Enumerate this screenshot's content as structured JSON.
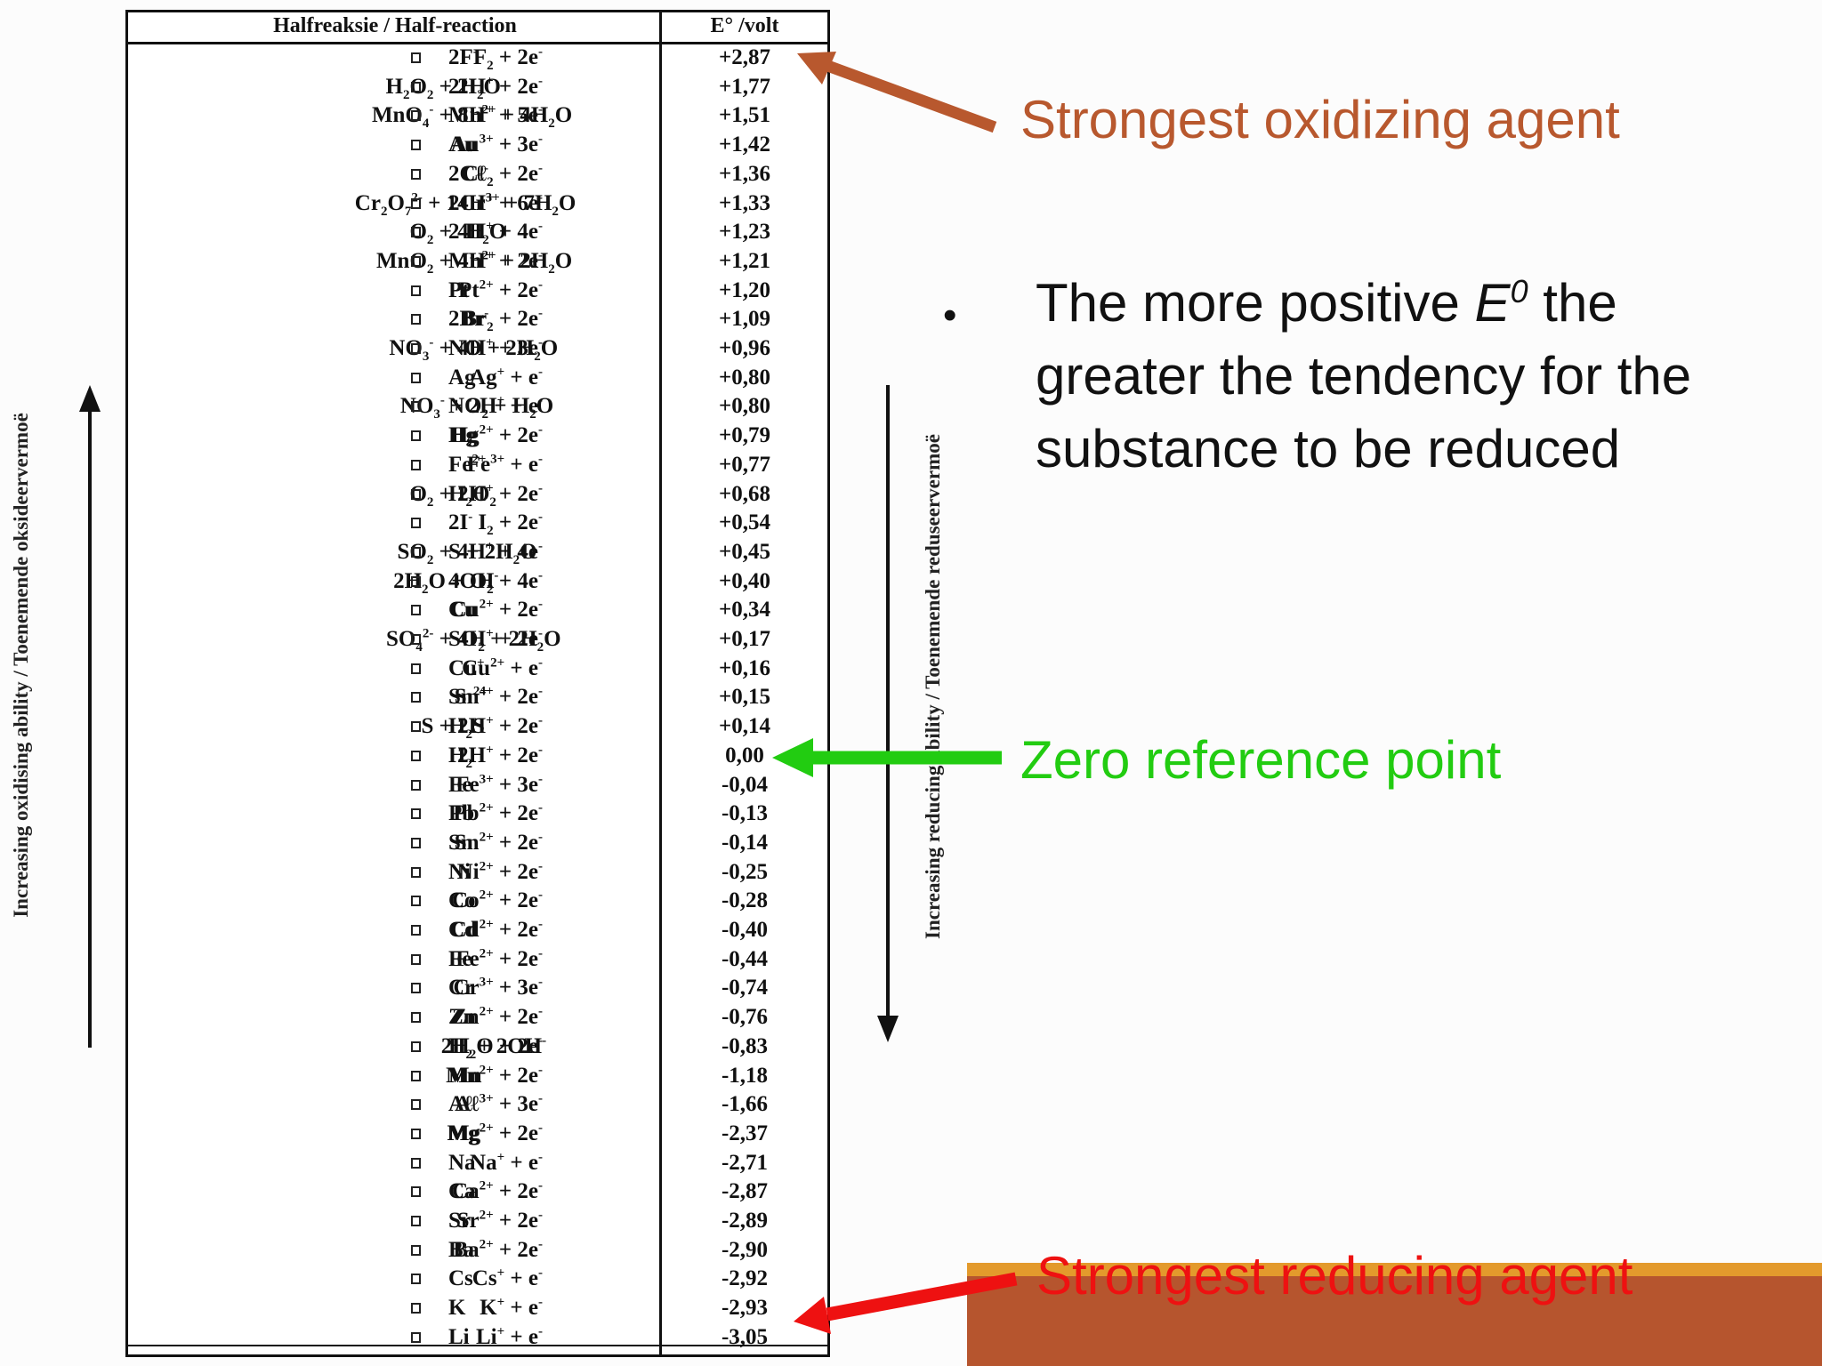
{
  "table": {
    "header_reaction": "Halfreaksie  /  Half-reaction",
    "header_e": "E° /volt",
    "rows": [
      {
        "l": "F<sub>2</sub> + 2e<sup>-</sup>",
        "r": "2F<sup>-</sup>",
        "e": "+2,87"
      },
      {
        "l": "H<sub>2</sub>O<sub>2</sub> + 2H<sup>+</sup> + 2e<sup>-</sup>",
        "r": "2H<sub>2</sub>O",
        "e": "+1,77"
      },
      {
        "l": "MnO<sub>4</sub><sup>-</sup> + 8H<sup>+</sup> + 5e<sup>-</sup>",
        "r": "Mn<sup>2+</sup> + 4H<sub>2</sub>O",
        "e": "+1,51"
      },
      {
        "l": "Au<sup>3+</sup> + 3e<sup>-</sup>",
        "r": "Au",
        "e": "+1,42"
      },
      {
        "l": "Cℓ<sub>2</sub> + 2e<sup>-</sup>",
        "r": "2Cℓ<sup>-</sup>",
        "e": "+1,36"
      },
      {
        "l": "Cr<sub>2</sub>O<sub>7</sub><sup>2-</sup> + 14H<sup>+</sup> + 6e<sup>-</sup>",
        "r": "2Cr<sup>3+</sup> + 7H<sub>2</sub>O",
        "e": "+1,33"
      },
      {
        "l": "O<sub>2</sub> + 4H<sup>+</sup> + 4e<sup>-</sup>",
        "r": "2 H<sub>2</sub>O",
        "e": "+1,23"
      },
      {
        "l": "MnO<sub>2</sub> + 4H<sup>+</sup> + 2e<sup>-</sup>",
        "r": "Mn<sup>2+</sup> + 2H<sub>2</sub>O",
        "e": "+1,21"
      },
      {
        "l": "Pt<sup>2+</sup> + 2e<sup>-</sup>",
        "r": "Pt",
        "e": "+1,20"
      },
      {
        "l": "Br<sub>2</sub> + 2e<sup>-</sup>",
        "r": "2Br<sup>-</sup>",
        "e": "+1,09"
      },
      {
        "l": "NO<sub>3</sub><sup>-</sup> + 4H<sup>+</sup> + 3e<sup>-</sup>",
        "r": "NO + 2H<sub>2</sub>O",
        "e": "+0,96"
      },
      {
        "l": "Ag<sup>+</sup> + e<sup>-</sup>",
        "r": "Ag",
        "e": "+0,80"
      },
      {
        "l": "NO<sub>3</sub><sup>-</sup> + 2H<sup>+</sup> + e<sup>-</sup>",
        "r": "NO<sub>2</sub> + H<sub>2</sub>O",
        "e": "+0,80"
      },
      {
        "l": "Hg<sup>2+</sup> + 2e<sup>-</sup>",
        "r": "Hg",
        "e": "+0,79"
      },
      {
        "l": "Fe<sup>3+</sup> + e<sup>-</sup>",
        "r": "Fe<sup>2+</sup>",
        "e": "+0,77"
      },
      {
        "l": "O<sub>2</sub> + 2H<sup>+</sup> + 2e<sup>-</sup>",
        "r": "H<sub>2</sub>O<sub>2</sub>",
        "e": "+0,68"
      },
      {
        "l": "I<sub>2</sub> + 2e<sup>-</sup>",
        "r": "2I<sup>-</sup>",
        "e": "+0,54"
      },
      {
        "l": "SO<sub>2</sub> + 4H<sup>+</sup> + 4e<sup>-</sup>",
        "r": "S + 2H<sub>2</sub>O",
        "e": "+0,45"
      },
      {
        "l": "2H<sub>2</sub>O + O<sub>2</sub> + 4e<sup>-</sup>",
        "r": "4OH<sup>-</sup>",
        "e": "+0,40"
      },
      {
        "l": "Cu<sup>2+</sup> + 2e<sup>-</sup>",
        "r": "Cu",
        "e": "+0,34"
      },
      {
        "l": "SO<sub>4</sub><sup>2-</sup> + 4H<sup>+</sup> + 2e<sup>-</sup>",
        "r": "SO<sub>2</sub> + 2H<sub>2</sub>O",
        "e": "+0,17"
      },
      {
        "l": "Cu<sup>2+</sup> + e<sup>-</sup>",
        "r": "Cu<sup>+</sup>",
        "e": "+0,16"
      },
      {
        "l": "Sn<sup>4+</sup> + 2e<sup>-</sup>",
        "r": "Sn<sup>2+</sup>",
        "e": "+0,15"
      },
      {
        "l": "S + 2H<sup>+</sup> + 2e<sup>-</sup>",
        "r": "H<sub>2</sub>S",
        "e": "+0,14"
      },
      {
        "l": "2H<sup>+</sup> + 2e<sup>-</sup>",
        "r": "H<sub>2</sub>",
        "e": "0,00"
      },
      {
        "l": "Fe<sup>3+</sup> + 3e<sup>-</sup>",
        "r": "Fe",
        "e": "-0,04"
      },
      {
        "l": "Pb<sup>2+</sup> + 2e<sup>-</sup>",
        "r": "Pb",
        "e": "-0,13"
      },
      {
        "l": "Sn<sup>2+</sup> + 2e<sup>-</sup>",
        "r": "Sn",
        "e": "-0,14"
      },
      {
        "l": "Ni<sup>2+</sup> + 2e<sup>-</sup>",
        "r": "Ni",
        "e": "-0,25"
      },
      {
        "l": "Co<sup>2+</sup> + 2e<sup>-</sup>",
        "r": "Co",
        "e": "-0,28"
      },
      {
        "l": "Cd<sup>2+</sup> + 2e<sup>-</sup>",
        "r": "Cd",
        "e": "-0,40"
      },
      {
        "l": "Fe<sup>2+</sup> + 2e<sup>-</sup>",
        "r": "Fe",
        "e": "-0,44"
      },
      {
        "l": "Cr<sup>3+</sup> + 3e<sup>-</sup>",
        "r": "Cr",
        "e": "-0,74"
      },
      {
        "l": "Zn<sup>2+</sup> + 2e<sup>-</sup>",
        "r": "Zn",
        "e": "-0,76"
      },
      {
        "l": "2H<sub>2</sub>O + 2e<sup>-</sup>",
        "r": "H<sub>2</sub> + 2OH<sup>-</sup>",
        "e": "-0,83"
      },
      {
        "l": "Mn<sup>2+</sup> + 2e<sup>-</sup>",
        "r": "Mn",
        "e": "-1,18"
      },
      {
        "l": "Aℓ<sup>3+</sup> + 3e<sup>-</sup>",
        "r": "Aℓ",
        "e": "-1,66"
      },
      {
        "l": "Mg<sup>2+</sup> + 2e<sup>-</sup>",
        "r": "Mg",
        "e": "-2,37"
      },
      {
        "l": "Na<sup>+</sup> + e<sup>-</sup>",
        "r": "Na",
        "e": "-2,71"
      },
      {
        "l": "Ca<sup>2+</sup> + 2e<sup>-</sup>",
        "r": "Ca",
        "e": "-2,87"
      },
      {
        "l": "Sr<sup>2+</sup> + 2e<sup>-</sup>",
        "r": "Sr",
        "e": "-2,89"
      },
      {
        "l": "Ba<sup>2+</sup> + 2e<sup>-</sup>",
        "r": "Ba",
        "e": "-2,90"
      },
      {
        "l": "Cs<sup>+</sup> + e<sup>-</sup>",
        "r": "Cs",
        "e": "-2,92"
      },
      {
        "l": "K<sup>+</sup> + e<sup>-</sup>",
        "r": "K",
        "e": "-2,93"
      },
      {
        "l": "Li<sup>+</sup> + e<sup>-</sup>",
        "r": "Li",
        "e": "-3,05"
      }
    ]
  },
  "side_labels": {
    "left": "Increasing oxidising ability / Toenemende oksideervermoë",
    "right": "Increasing reducing ability / Toenemende reduseervermoë"
  },
  "annotations": {
    "oxidizing": "Strongest oxidizing agent",
    "zero": "Zero reference point",
    "reducing": "Strongest reducing agent"
  },
  "bullet": {
    "pre": "The more positive ",
    "symbol": "E",
    "superscript": "0",
    "post": " the greater the tendency for the substance to be reduced"
  },
  "colors": {
    "oxidizing": "#b8582e",
    "zero": "#22cc11",
    "reducing": "#ee1111",
    "orange_bar": "#e39a2c",
    "brown_box": "#b6552e"
  }
}
